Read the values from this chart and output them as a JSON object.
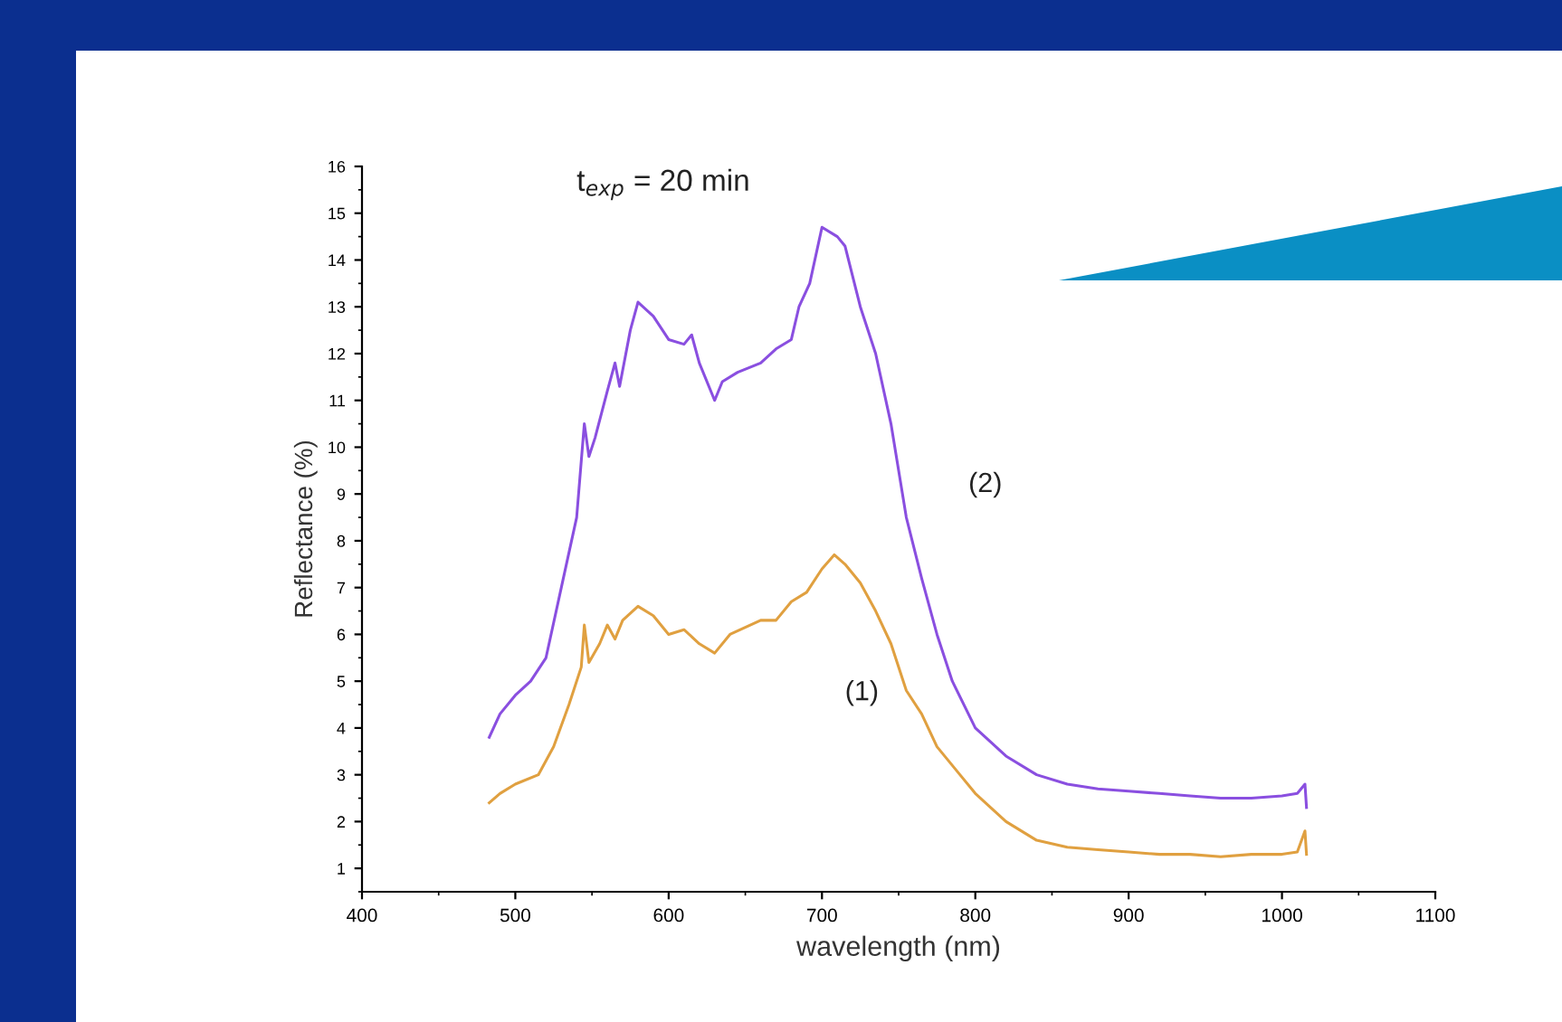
{
  "chart_data": {
    "type": "line",
    "xlabel": "wavelength (nm)",
    "ylabel": "Reflectance (%)",
    "annotations": [
      "t$_{exp}$ = 20 min"
    ],
    "xlim": [
      400,
      1100
    ],
    "xticks": [
      400,
      500,
      600,
      700,
      800,
      900,
      1000,
      1100
    ],
    "ylim": [
      0.5,
      16
    ],
    "yticks": [
      1,
      2,
      3,
      4,
      5,
      6,
      7,
      8,
      9,
      10,
      11,
      12,
      13,
      14,
      15,
      16
    ],
    "grid": false,
    "legend": false,
    "marker": "none",
    "line_style": "solid",
    "series": [
      {
        "name": "(1)",
        "color": "#e0a040",
        "x": [
          483,
          490,
          500,
          515,
          525,
          535,
          543,
          545,
          548,
          555,
          560,
          565,
          570,
          580,
          590,
          600,
          610,
          620,
          630,
          640,
          660,
          670,
          680,
          690,
          700,
          708,
          715,
          725,
          735,
          745,
          755,
          765,
          775,
          790,
          800,
          820,
          840,
          860,
          880,
          900,
          920,
          940,
          960,
          980,
          1000,
          1010,
          1015,
          1016
        ],
        "values": [
          2.4,
          2.6,
          2.8,
          3.0,
          3.6,
          4.5,
          5.3,
          6.2,
          5.4,
          5.8,
          6.2,
          5.9,
          6.3,
          6.6,
          6.4,
          6.0,
          6.1,
          5.8,
          5.6,
          6.0,
          6.3,
          6.3,
          6.7,
          6.9,
          7.4,
          7.7,
          7.5,
          7.1,
          6.5,
          5.8,
          4.8,
          4.3,
          3.6,
          3.0,
          2.6,
          2.0,
          1.6,
          1.45,
          1.4,
          1.35,
          1.3,
          1.3,
          1.25,
          1.3,
          1.3,
          1.35,
          1.8,
          1.3
        ]
      },
      {
        "name": "(2)",
        "color": "#8a4fe0",
        "x": [
          483,
          490,
          500,
          510,
          520,
          530,
          540,
          545,
          548,
          552,
          560,
          565,
          568,
          575,
          580,
          590,
          600,
          610,
          615,
          620,
          630,
          635,
          645,
          660,
          670,
          680,
          685,
          692,
          700,
          710,
          715,
          725,
          735,
          745,
          755,
          765,
          775,
          785,
          800,
          820,
          840,
          860,
          880,
          900,
          920,
          940,
          960,
          980,
          1000,
          1010,
          1015,
          1016
        ],
        "values": [
          3.8,
          4.3,
          4.7,
          5.0,
          5.5,
          7.0,
          8.5,
          10.5,
          9.8,
          10.2,
          11.2,
          11.8,
          11.3,
          12.5,
          13.1,
          12.8,
          12.3,
          12.2,
          12.4,
          11.8,
          11.0,
          11.4,
          11.6,
          11.8,
          12.1,
          12.3,
          13.0,
          13.5,
          14.7,
          14.5,
          14.3,
          13.0,
          12.0,
          10.5,
          8.5,
          7.2,
          6.0,
          5.0,
          4.0,
          3.4,
          3.0,
          2.8,
          2.7,
          2.65,
          2.6,
          2.55,
          2.5,
          2.5,
          2.55,
          2.6,
          2.8,
          2.3
        ]
      }
    ]
  }
}
